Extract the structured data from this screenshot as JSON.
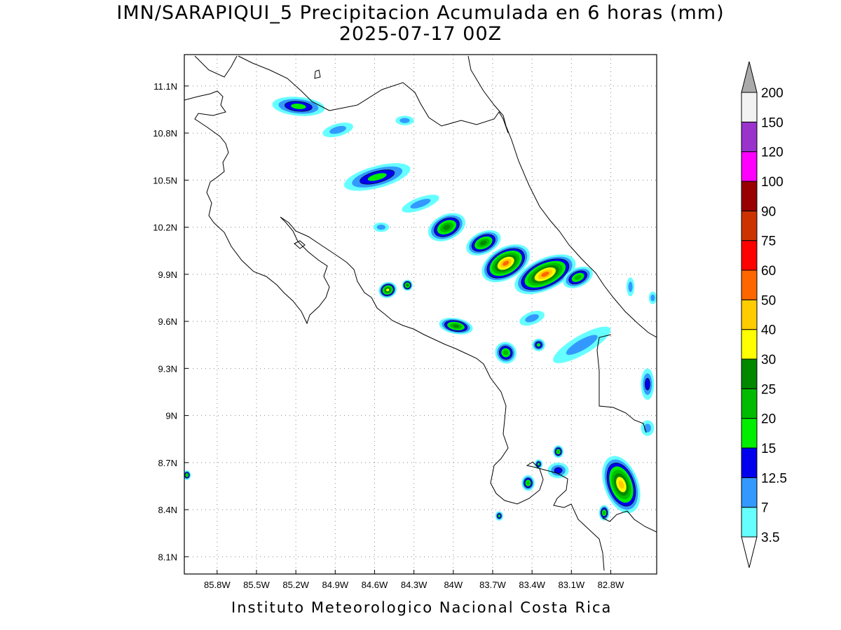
{
  "title": {
    "line1": "IMN/SARAPIQUI_5 Precipitacion Acumulada en 6 horas (mm)",
    "line2": "2025-07-17 00Z"
  },
  "footer": "Instituto Meteorologico Nacional Costa Rica",
  "map": {
    "lon_range": [
      -86.05,
      -82.45
    ],
    "lat_range": [
      7.99,
      11.3
    ],
    "lon_ticks": [
      {
        "value": -85.8,
        "label": "85.8W"
      },
      {
        "value": -85.5,
        "label": "85.5W"
      },
      {
        "value": -85.2,
        "label": "85.2W"
      },
      {
        "value": -84.9,
        "label": "84.9W"
      },
      {
        "value": -84.6,
        "label": "84.6W"
      },
      {
        "value": -84.3,
        "label": "84.3W"
      },
      {
        "value": -84.0,
        "label": "84W"
      },
      {
        "value": -83.7,
        "label": "83.7W"
      },
      {
        "value": -83.4,
        "label": "83.4W"
      },
      {
        "value": -83.1,
        "label": "83.1W"
      },
      {
        "value": -82.8,
        "label": "82.8W"
      }
    ],
    "lat_ticks": [
      {
        "value": 11.1,
        "label": "11.1N"
      },
      {
        "value": 10.8,
        "label": "10.8N"
      },
      {
        "value": 10.5,
        "label": "10.5N"
      },
      {
        "value": 10.2,
        "label": "10.2N"
      },
      {
        "value": 9.9,
        "label": "9.9N"
      },
      {
        "value": 9.6,
        "label": "9.6N"
      },
      {
        "value": 9.3,
        "label": "9.3N"
      },
      {
        "value": 9.0,
        "label": "9N"
      },
      {
        "value": 8.7,
        "label": "8.7N"
      },
      {
        "value": 8.4,
        "label": "8.4N"
      },
      {
        "value": 8.1,
        "label": "8.1N"
      }
    ],
    "grid": "dotted"
  },
  "colorbar": {
    "levels": [
      {
        "label": "3.5",
        "color": "#66ffff"
      },
      {
        "label": "7",
        "color": "#3399ff"
      },
      {
        "label": "12.5",
        "color": "#0000ee"
      },
      {
        "label": "15",
        "color": "#00ee00"
      },
      {
        "label": "20",
        "color": "#00bb00"
      },
      {
        "label": "25",
        "color": "#008800"
      },
      {
        "label": "30",
        "color": "#ffff00"
      },
      {
        "label": "40",
        "color": "#ffcc00"
      },
      {
        "label": "50",
        "color": "#ff6600"
      },
      {
        "label": "60",
        "color": "#ff0000"
      },
      {
        "label": "75",
        "color": "#cc3300"
      },
      {
        "label": "90",
        "color": "#990000"
      },
      {
        "label": "100",
        "color": "#ff00ff"
      },
      {
        "label": "120",
        "color": "#9933cc"
      },
      {
        "label": "150",
        "color": "#f2f2f2"
      },
      {
        "label": "200",
        "color": ""
      }
    ],
    "top_arrow_color": "#aaaaaa",
    "bottom_arrow_color": "#ffffff"
  },
  "precip_cells": [
    {
      "lon": -85.18,
      "lat": 10.97,
      "rx": 0.2,
      "ry": 0.06,
      "level": 3,
      "rot": -5
    },
    {
      "lon": -84.58,
      "lat": 10.52,
      "rx": 0.26,
      "ry": 0.07,
      "level": 3,
      "rot": 15
    },
    {
      "lon": -84.88,
      "lat": 10.82,
      "rx": 0.12,
      "ry": 0.04,
      "level": 1,
      "rot": 15
    },
    {
      "lon": -84.37,
      "lat": 10.88,
      "rx": 0.07,
      "ry": 0.03,
      "level": 1,
      "rot": 0
    },
    {
      "lon": -84.25,
      "lat": 10.35,
      "rx": 0.15,
      "ry": 0.04,
      "level": 1,
      "rot": 20
    },
    {
      "lon": -84.05,
      "lat": 10.2,
      "rx": 0.15,
      "ry": 0.08,
      "level": 5,
      "rot": 25
    },
    {
      "lon": -83.77,
      "lat": 10.1,
      "rx": 0.14,
      "ry": 0.07,
      "level": 5,
      "rot": 25
    },
    {
      "lon": -83.6,
      "lat": 9.97,
      "rx": 0.2,
      "ry": 0.1,
      "level": 8,
      "rot": 30
    },
    {
      "lon": -83.3,
      "lat": 9.9,
      "rx": 0.25,
      "ry": 0.1,
      "level": 8,
      "rot": 25
    },
    {
      "lon": -83.05,
      "lat": 9.88,
      "rx": 0.12,
      "ry": 0.06,
      "level": 4,
      "rot": 25
    },
    {
      "lon": -84.5,
      "lat": 9.8,
      "rx": 0.07,
      "ry": 0.05,
      "level": 6,
      "rot": 20
    },
    {
      "lon": -84.35,
      "lat": 9.83,
      "rx": 0.04,
      "ry": 0.035,
      "level": 5,
      "rot": 0
    },
    {
      "lon": -83.98,
      "lat": 9.57,
      "rx": 0.13,
      "ry": 0.05,
      "level": 5,
      "rot": -10
    },
    {
      "lon": -83.6,
      "lat": 9.4,
      "rx": 0.08,
      "ry": 0.07,
      "level": 4,
      "rot": 40
    },
    {
      "lon": -83.35,
      "lat": 9.45,
      "rx": 0.05,
      "ry": 0.04,
      "level": 3,
      "rot": 0
    },
    {
      "lon": -82.72,
      "lat": 8.56,
      "rx": 0.13,
      "ry": 0.19,
      "level": 7,
      "rot": 20
    },
    {
      "lon": -83.43,
      "lat": 8.57,
      "rx": 0.05,
      "ry": 0.05,
      "level": 4,
      "rot": 0
    },
    {
      "lon": -83.35,
      "lat": 8.69,
      "rx": 0.03,
      "ry": 0.03,
      "level": 3,
      "rot": 0
    },
    {
      "lon": -83.2,
      "lat": 8.77,
      "rx": 0.04,
      "ry": 0.04,
      "level": 4,
      "rot": 0
    },
    {
      "lon": -83.65,
      "lat": 8.36,
      "rx": 0.03,
      "ry": 0.03,
      "level": 3,
      "rot": 0
    },
    {
      "lon": -82.85,
      "lat": 8.38,
      "rx": 0.04,
      "ry": 0.05,
      "level": 4,
      "rot": 0
    },
    {
      "lon": -86.03,
      "lat": 8.62,
      "rx": 0.03,
      "ry": 0.03,
      "level": 4,
      "rot": 0
    },
    {
      "lon": -83.02,
      "lat": 9.45,
      "rx": 0.25,
      "ry": 0.06,
      "level": 1,
      "rot": 30
    },
    {
      "lon": -82.52,
      "lat": 9.2,
      "rx": 0.05,
      "ry": 0.1,
      "level": 2,
      "rot": 0
    },
    {
      "lon": -82.52,
      "lat": 8.92,
      "rx": 0.05,
      "ry": 0.05,
      "level": 1,
      "rot": 0
    },
    {
      "lon": -82.65,
      "lat": 9.82,
      "rx": 0.03,
      "ry": 0.06,
      "level": 1,
      "rot": 0
    },
    {
      "lon": -82.48,
      "lat": 9.75,
      "rx": 0.03,
      "ry": 0.04,
      "level": 1,
      "rot": 0
    },
    {
      "lon": -83.4,
      "lat": 9.62,
      "rx": 0.1,
      "ry": 0.04,
      "level": 1,
      "rot": 20
    },
    {
      "lon": -84.55,
      "lat": 10.2,
      "rx": 0.06,
      "ry": 0.03,
      "level": 1,
      "rot": 0
    },
    {
      "lon": -83.2,
      "lat": 8.65,
      "rx": 0.08,
      "ry": 0.05,
      "level": 2,
      "rot": 0
    }
  ]
}
